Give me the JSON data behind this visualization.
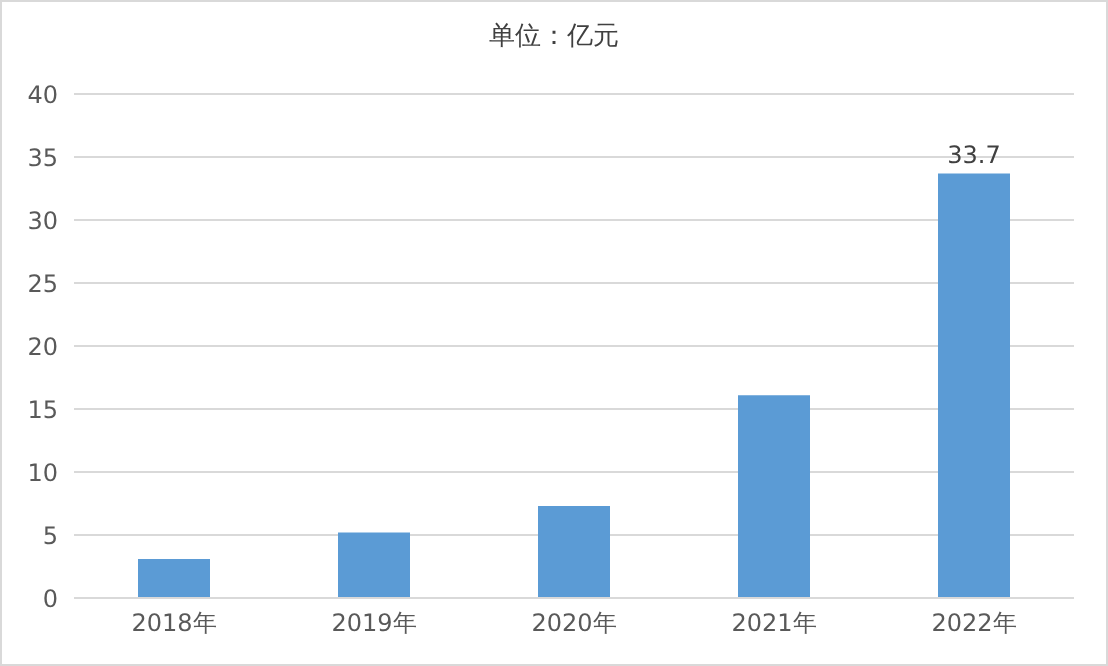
{
  "chart_data": {
    "type": "bar",
    "title": "单位：亿元",
    "categories": [
      "2018年",
      "2019年",
      "2020年",
      "2021年",
      "2022年"
    ],
    "values": [
      3.1,
      5.2,
      7.3,
      16.1,
      33.7
    ],
    "value_labels": [
      null,
      null,
      null,
      null,
      "33.7"
    ],
    "color": "#5b9bd5",
    "ylim": [
      0,
      40
    ],
    "yticks": [
      0,
      5,
      10,
      15,
      20,
      25,
      30,
      35,
      40
    ],
    "grid": "y"
  }
}
